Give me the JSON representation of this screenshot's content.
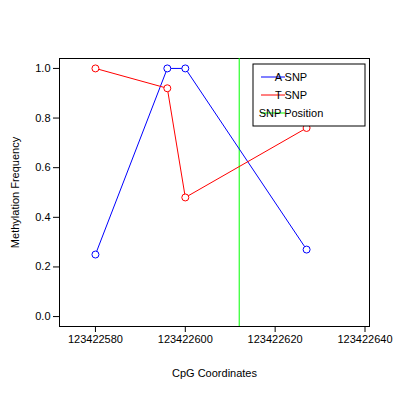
{
  "chart_data": {
    "type": "line",
    "x_label": "CpG Coordinates",
    "y_label": "Methylation Frequency",
    "x": [
      123422580,
      123422596,
      123422600,
      123422627
    ],
    "series": [
      {
        "name": "A SNP",
        "color": "#0000ff",
        "marker": "circle-open",
        "values": [
          0.25,
          1.0,
          1.0,
          0.27
        ]
      },
      {
        "name": "T SNP",
        "color": "#ff0000",
        "marker": "circle-open",
        "values": [
          1.0,
          0.92,
          0.48,
          0.76
        ]
      }
    ],
    "vlines": [
      {
        "name": "SNP Position",
        "x": 123422612,
        "color": "#00ff00"
      }
    ],
    "xlim": [
      123422572,
      123422641
    ],
    "xticks": [
      123422580,
      123422600,
      123422620,
      123422640
    ],
    "ylim": [
      -0.04,
      1.04
    ],
    "yticks": [
      {
        "value": 0,
        "label": "0.0"
      },
      0.2,
      0.4,
      0.6,
      0.8,
      {
        "value": 1,
        "label": "1.0"
      }
    ],
    "legend": "top right"
  }
}
